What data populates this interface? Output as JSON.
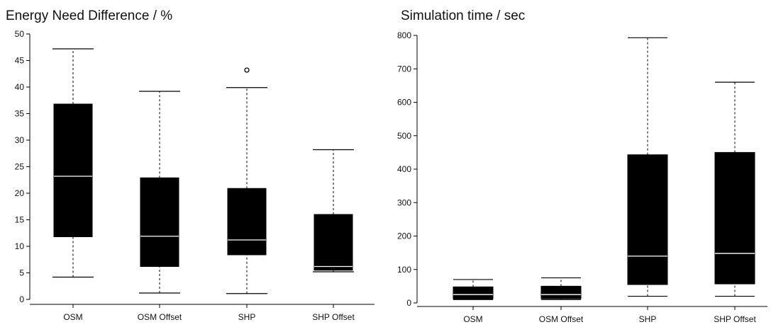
{
  "chart_data": [
    {
      "type": "boxplot",
      "title": "Energy Need Difference / %",
      "xlabel": "",
      "ylabel": "",
      "ylim": [
        0,
        50
      ],
      "yticks": [
        0,
        5,
        10,
        15,
        20,
        25,
        30,
        35,
        40,
        45,
        50
      ],
      "categories": [
        "OSM",
        "OSM Offset",
        "SHP",
        "SHP Offset"
      ],
      "boxes": [
        {
          "whisker_low": 4.2,
          "q1": 11.8,
          "median": 23.2,
          "q3": 36.8,
          "whisker_high": 47.2,
          "outliers": []
        },
        {
          "whisker_low": 1.2,
          "q1": 6.2,
          "median": 11.9,
          "q3": 22.9,
          "whisker_high": 39.2,
          "outliers": []
        },
        {
          "whisker_low": 1.1,
          "q1": 8.4,
          "median": 11.2,
          "q3": 20.9,
          "whisker_high": 39.9,
          "outliers": [
            43.2
          ]
        },
        {
          "whisker_low": 5.2,
          "q1": 5.5,
          "median": 6.2,
          "q3": 16.0,
          "whisker_high": 28.2,
          "outliers": []
        }
      ],
      "grid": false
    },
    {
      "type": "boxplot",
      "title": "Simulation time / sec",
      "xlabel": "",
      "ylabel": "",
      "ylim": [
        0,
        800
      ],
      "yticks": [
        0,
        100,
        200,
        300,
        400,
        500,
        600,
        700,
        800
      ],
      "categories": [
        "OSM",
        "OSM Offset",
        "SHP",
        "SHP Offset"
      ],
      "boxes": [
        {
          "whisker_low": 10,
          "q1": 12,
          "median": 25,
          "q3": 48,
          "whisker_high": 70,
          "outliers": []
        },
        {
          "whisker_low": 10,
          "q1": 13,
          "median": 25,
          "q3": 50,
          "whisker_high": 75,
          "outliers": []
        },
        {
          "whisker_low": 20,
          "q1": 55,
          "median": 140,
          "q3": 443,
          "whisker_high": 793,
          "outliers": []
        },
        {
          "whisker_low": 20,
          "q1": 57,
          "median": 148,
          "q3": 450,
          "whisker_high": 660,
          "outliers": []
        }
      ],
      "grid": false
    }
  ]
}
